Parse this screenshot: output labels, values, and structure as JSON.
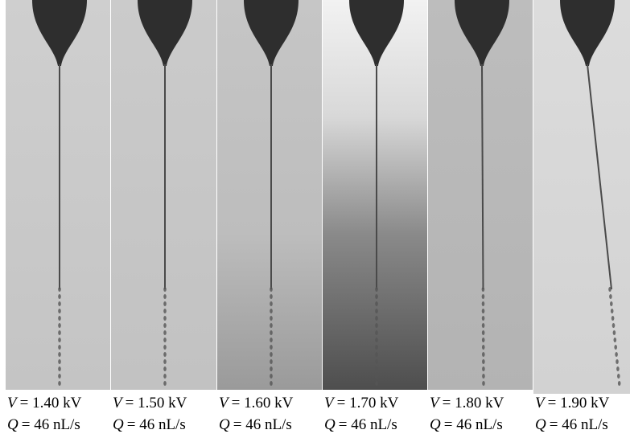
{
  "panels": [
    {
      "voltage_symbol": "V",
      "voltage": "= 1.40 kV",
      "flow_symbol": "Q",
      "flow": "= 46 nL/s"
    },
    {
      "voltage_symbol": "V",
      "voltage": "= 1.50 kV",
      "flow_symbol": "Q",
      "flow": "= 46 nL/s"
    },
    {
      "voltage_symbol": "V",
      "voltage": "= 1.60 kV",
      "flow_symbol": "Q",
      "flow": "= 46 nL/s"
    },
    {
      "voltage_symbol": "V",
      "voltage": "= 1.70 kV",
      "flow_symbol": "Q",
      "flow": "= 46 nL/s"
    },
    {
      "voltage_symbol": "V",
      "voltage": "= 1.80 kV",
      "flow_symbol": "Q",
      "flow": "= 46 nL/s"
    },
    {
      "voltage_symbol": "V",
      "voltage": "= 1.90 kV",
      "flow_symbol": "Q",
      "flow": "= 46 nL/s"
    }
  ]
}
